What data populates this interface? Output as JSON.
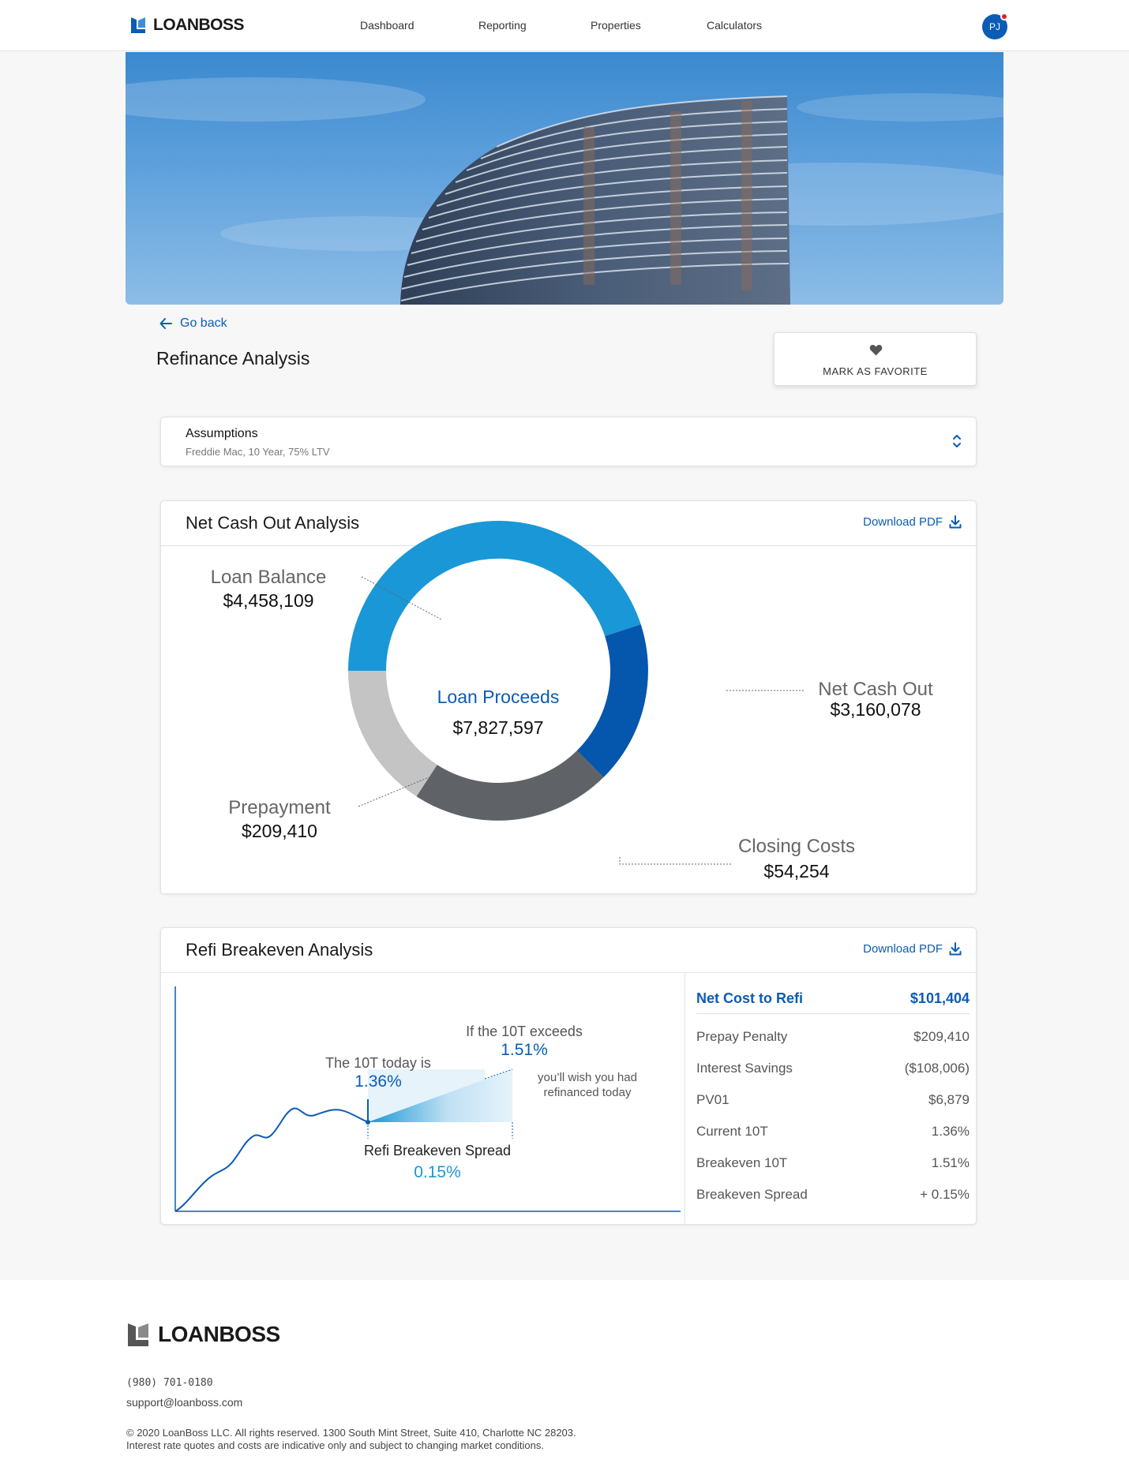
{
  "header": {
    "brand": "LOANBOSS",
    "nav": [
      {
        "label": "Dashboard"
      },
      {
        "label": "Reporting"
      },
      {
        "label": "Properties"
      },
      {
        "label": "Calculators"
      }
    ],
    "avatar_initials": "PJ"
  },
  "page": {
    "back_label": "Go back",
    "title": "Refinance Analysis",
    "favorite_label": "MARK AS FAVORITE"
  },
  "assumptions": {
    "title": "Assumptions",
    "subtitle": "Freddie Mac, 10 Year, 75% LTV"
  },
  "net_cash": {
    "title": "Net Cash Out Analysis",
    "download_label": "Download PDF",
    "center_label": "Loan Proceeds",
    "center_value": "$7,827,597",
    "labels": {
      "loan_balance": {
        "name": "Loan Balance",
        "value": "$4,458,109"
      },
      "net_cash_out": {
        "name": "Net Cash Out",
        "value": "$3,160,078"
      },
      "prepayment": {
        "name": "Prepayment",
        "value": "$209,410"
      },
      "closing_costs": {
        "name": "Closing Costs",
        "value": "$54,254"
      }
    }
  },
  "refi": {
    "title": "Refi Breakeven Analysis",
    "download_label": "Download PDF",
    "today_text": "The 10T today is",
    "today_value": "1.36%",
    "exceeds_text": "If the 10T exceeds",
    "exceeds_value": "1.51%",
    "wish_line1": "you’ll wish you had",
    "wish_line2": "refinanced today",
    "spread_text": "Refi Breakeven Spread",
    "spread_value": "0.15%",
    "summary_head": {
      "label": "Net Cost to Refi",
      "value": "$101,404"
    },
    "summary_rows": [
      {
        "label": "Prepay Penalty",
        "value": "$209,410"
      },
      {
        "label": "Interest Savings",
        "value": "($108,006)"
      },
      {
        "label": "PV01",
        "value": "$6,879"
      },
      {
        "label": "Current 10T",
        "value": "1.36%"
      },
      {
        "label": "Breakeven 10T",
        "value": "1.51%"
      },
      {
        "label": "Breakeven Spread",
        "value": "+ 0.15%"
      }
    ]
  },
  "footer": {
    "brand": "LOANBOSS",
    "phone": "(980) 701-0180",
    "email": "support@loanboss.com",
    "copyright_line1": "© 2020 LoanBoss LLC. All rights reserved. 1300 South Mint Street, Suite 410, Charlotte NC 28203.",
    "copyright_line2": "Interest rate quotes and costs are indicative only and subject to changing market conditions."
  },
  "colors": {
    "brand_blue": "#0a5cb5",
    "segment_loan_balance": "#1a97d6",
    "segment_net_cash_out": "#0556ad",
    "segment_closing_costs": "#5f6266",
    "segment_prepayment": "#c4c4c4"
  },
  "icons": {
    "back": "arrow-left-icon",
    "favorite": "heart-icon",
    "assumptions": "chevron-up-down-icon",
    "download": "download-icon"
  }
}
